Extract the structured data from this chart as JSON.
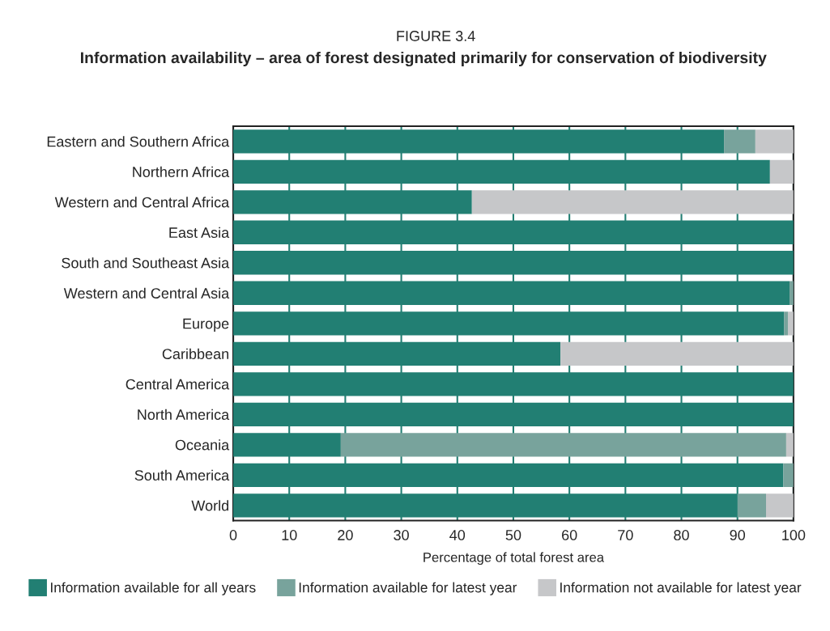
{
  "chart_data": {
    "type": "bar",
    "orientation": "horizontal",
    "stacked": true,
    "title": "FIGURE 3.4",
    "subtitle": "Information availability – area of forest designated primarily for conservation of biodiversity",
    "xlabel": "Percentage of total forest area",
    "categories": [
      "Eastern and Southern Africa",
      "Northern Africa",
      "Western and Central Africa",
      "East Asia",
      "South and Southeast Asia",
      "Western and Central Asia",
      "Europe",
      "Caribbean",
      "Central America",
      "North America",
      "Oceania",
      "South America",
      "World"
    ],
    "series": [
      {
        "name": "Information available for all years",
        "color": "#227f73",
        "values": [
          87.6,
          95.8,
          42.6,
          100,
          100,
          99.3,
          98.3,
          58.4,
          100,
          100,
          19.2,
          98.2,
          90.0
        ]
      },
      {
        "name": "Information available for latest year",
        "color": "#78a39c",
        "values": [
          5.6,
          0,
          0,
          0,
          0,
          0.7,
          0.7,
          0,
          0,
          0,
          79.5,
          1.8,
          5.1
        ]
      },
      {
        "name": "Information not available for latest year",
        "color": "#c6c7c9",
        "values": [
          6.8,
          4.2,
          57.4,
          0,
          0,
          0,
          1.0,
          41.6,
          0,
          0,
          1.3,
          0,
          4.9
        ]
      }
    ],
    "xlim": [
      0,
      100
    ],
    "xticks": [
      0,
      10,
      20,
      30,
      40,
      50,
      60,
      70,
      80,
      90,
      100
    ],
    "grid": "x",
    "legend": "bottom"
  }
}
